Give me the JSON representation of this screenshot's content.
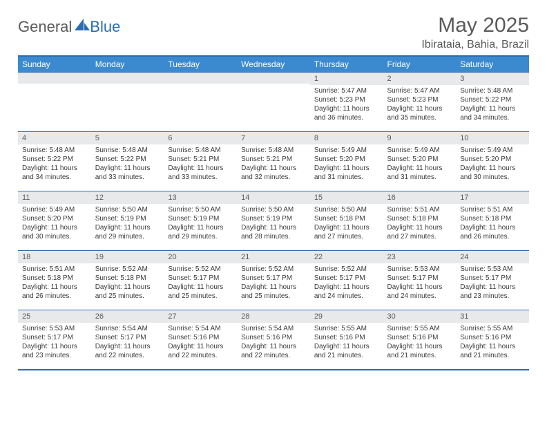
{
  "brand": {
    "part1": "General",
    "part2": "Blue"
  },
  "title": "May 2025",
  "location": "Ibirataia, Bahia, Brazil",
  "colors": {
    "header_bg": "#3b8ad0",
    "border": "#2a6cb3",
    "daynum_bg": "#e8e9ea",
    "text_muted": "#5a5a5a"
  },
  "weekdays": [
    "Sunday",
    "Monday",
    "Tuesday",
    "Wednesday",
    "Thursday",
    "Friday",
    "Saturday"
  ],
  "weeks": [
    [
      {
        "n": "",
        "sr": "",
        "ss": "",
        "dl": ""
      },
      {
        "n": "",
        "sr": "",
        "ss": "",
        "dl": ""
      },
      {
        "n": "",
        "sr": "",
        "ss": "",
        "dl": ""
      },
      {
        "n": "",
        "sr": "",
        "ss": "",
        "dl": ""
      },
      {
        "n": "1",
        "sr": "Sunrise: 5:47 AM",
        "ss": "Sunset: 5:23 PM",
        "dl": "Daylight: 11 hours and 36 minutes."
      },
      {
        "n": "2",
        "sr": "Sunrise: 5:47 AM",
        "ss": "Sunset: 5:23 PM",
        "dl": "Daylight: 11 hours and 35 minutes."
      },
      {
        "n": "3",
        "sr": "Sunrise: 5:48 AM",
        "ss": "Sunset: 5:22 PM",
        "dl": "Daylight: 11 hours and 34 minutes."
      }
    ],
    [
      {
        "n": "4",
        "sr": "Sunrise: 5:48 AM",
        "ss": "Sunset: 5:22 PM",
        "dl": "Daylight: 11 hours and 34 minutes."
      },
      {
        "n": "5",
        "sr": "Sunrise: 5:48 AM",
        "ss": "Sunset: 5:22 PM",
        "dl": "Daylight: 11 hours and 33 minutes."
      },
      {
        "n": "6",
        "sr": "Sunrise: 5:48 AM",
        "ss": "Sunset: 5:21 PM",
        "dl": "Daylight: 11 hours and 33 minutes."
      },
      {
        "n": "7",
        "sr": "Sunrise: 5:48 AM",
        "ss": "Sunset: 5:21 PM",
        "dl": "Daylight: 11 hours and 32 minutes."
      },
      {
        "n": "8",
        "sr": "Sunrise: 5:49 AM",
        "ss": "Sunset: 5:20 PM",
        "dl": "Daylight: 11 hours and 31 minutes."
      },
      {
        "n": "9",
        "sr": "Sunrise: 5:49 AM",
        "ss": "Sunset: 5:20 PM",
        "dl": "Daylight: 11 hours and 31 minutes."
      },
      {
        "n": "10",
        "sr": "Sunrise: 5:49 AM",
        "ss": "Sunset: 5:20 PM",
        "dl": "Daylight: 11 hours and 30 minutes."
      }
    ],
    [
      {
        "n": "11",
        "sr": "Sunrise: 5:49 AM",
        "ss": "Sunset: 5:20 PM",
        "dl": "Daylight: 11 hours and 30 minutes."
      },
      {
        "n": "12",
        "sr": "Sunrise: 5:50 AM",
        "ss": "Sunset: 5:19 PM",
        "dl": "Daylight: 11 hours and 29 minutes."
      },
      {
        "n": "13",
        "sr": "Sunrise: 5:50 AM",
        "ss": "Sunset: 5:19 PM",
        "dl": "Daylight: 11 hours and 29 minutes."
      },
      {
        "n": "14",
        "sr": "Sunrise: 5:50 AM",
        "ss": "Sunset: 5:19 PM",
        "dl": "Daylight: 11 hours and 28 minutes."
      },
      {
        "n": "15",
        "sr": "Sunrise: 5:50 AM",
        "ss": "Sunset: 5:18 PM",
        "dl": "Daylight: 11 hours and 27 minutes."
      },
      {
        "n": "16",
        "sr": "Sunrise: 5:51 AM",
        "ss": "Sunset: 5:18 PM",
        "dl": "Daylight: 11 hours and 27 minutes."
      },
      {
        "n": "17",
        "sr": "Sunrise: 5:51 AM",
        "ss": "Sunset: 5:18 PM",
        "dl": "Daylight: 11 hours and 26 minutes."
      }
    ],
    [
      {
        "n": "18",
        "sr": "Sunrise: 5:51 AM",
        "ss": "Sunset: 5:18 PM",
        "dl": "Daylight: 11 hours and 26 minutes."
      },
      {
        "n": "19",
        "sr": "Sunrise: 5:52 AM",
        "ss": "Sunset: 5:18 PM",
        "dl": "Daylight: 11 hours and 25 minutes."
      },
      {
        "n": "20",
        "sr": "Sunrise: 5:52 AM",
        "ss": "Sunset: 5:17 PM",
        "dl": "Daylight: 11 hours and 25 minutes."
      },
      {
        "n": "21",
        "sr": "Sunrise: 5:52 AM",
        "ss": "Sunset: 5:17 PM",
        "dl": "Daylight: 11 hours and 25 minutes."
      },
      {
        "n": "22",
        "sr": "Sunrise: 5:52 AM",
        "ss": "Sunset: 5:17 PM",
        "dl": "Daylight: 11 hours and 24 minutes."
      },
      {
        "n": "23",
        "sr": "Sunrise: 5:53 AM",
        "ss": "Sunset: 5:17 PM",
        "dl": "Daylight: 11 hours and 24 minutes."
      },
      {
        "n": "24",
        "sr": "Sunrise: 5:53 AM",
        "ss": "Sunset: 5:17 PM",
        "dl": "Daylight: 11 hours and 23 minutes."
      }
    ],
    [
      {
        "n": "25",
        "sr": "Sunrise: 5:53 AM",
        "ss": "Sunset: 5:17 PM",
        "dl": "Daylight: 11 hours and 23 minutes."
      },
      {
        "n": "26",
        "sr": "Sunrise: 5:54 AM",
        "ss": "Sunset: 5:17 PM",
        "dl": "Daylight: 11 hours and 22 minutes."
      },
      {
        "n": "27",
        "sr": "Sunrise: 5:54 AM",
        "ss": "Sunset: 5:16 PM",
        "dl": "Daylight: 11 hours and 22 minutes."
      },
      {
        "n": "28",
        "sr": "Sunrise: 5:54 AM",
        "ss": "Sunset: 5:16 PM",
        "dl": "Daylight: 11 hours and 22 minutes."
      },
      {
        "n": "29",
        "sr": "Sunrise: 5:55 AM",
        "ss": "Sunset: 5:16 PM",
        "dl": "Daylight: 11 hours and 21 minutes."
      },
      {
        "n": "30",
        "sr": "Sunrise: 5:55 AM",
        "ss": "Sunset: 5:16 PM",
        "dl": "Daylight: 11 hours and 21 minutes."
      },
      {
        "n": "31",
        "sr": "Sunrise: 5:55 AM",
        "ss": "Sunset: 5:16 PM",
        "dl": "Daylight: 11 hours and 21 minutes."
      }
    ]
  ]
}
